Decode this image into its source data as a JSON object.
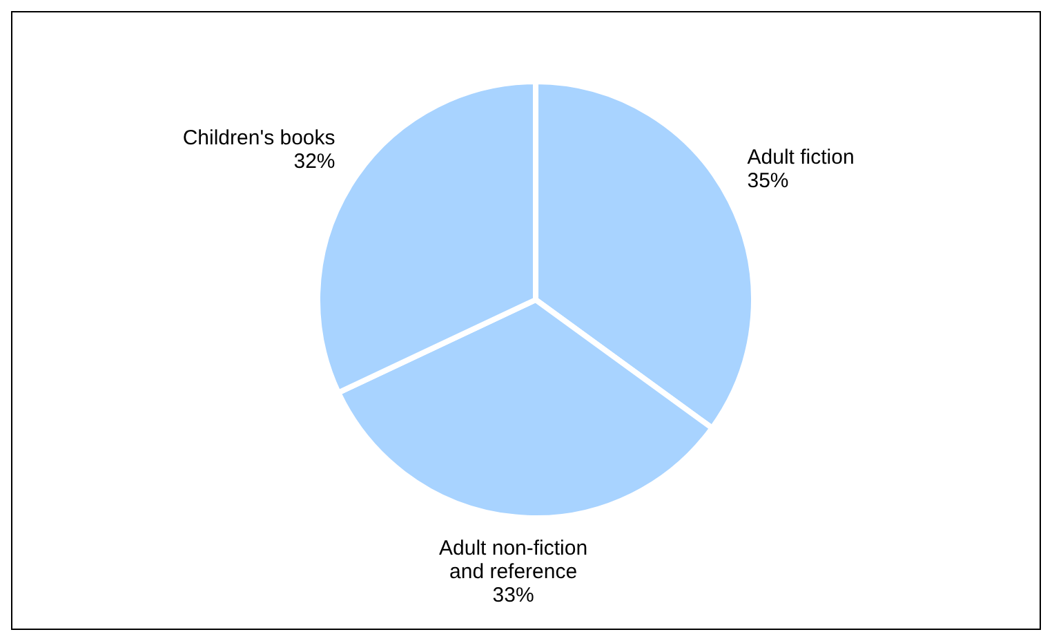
{
  "chart_data": {
    "type": "pie",
    "categories": [
      "Adult fiction",
      "Adult non-fiction and reference",
      "Children's books"
    ],
    "values": [
      35,
      33,
      32
    ],
    "colors": [
      "#a8d3ff",
      "#a8d3ff",
      "#a8d3ff"
    ],
    "value_labels": [
      "35%",
      "33%",
      "32%"
    ],
    "legend": false
  }
}
